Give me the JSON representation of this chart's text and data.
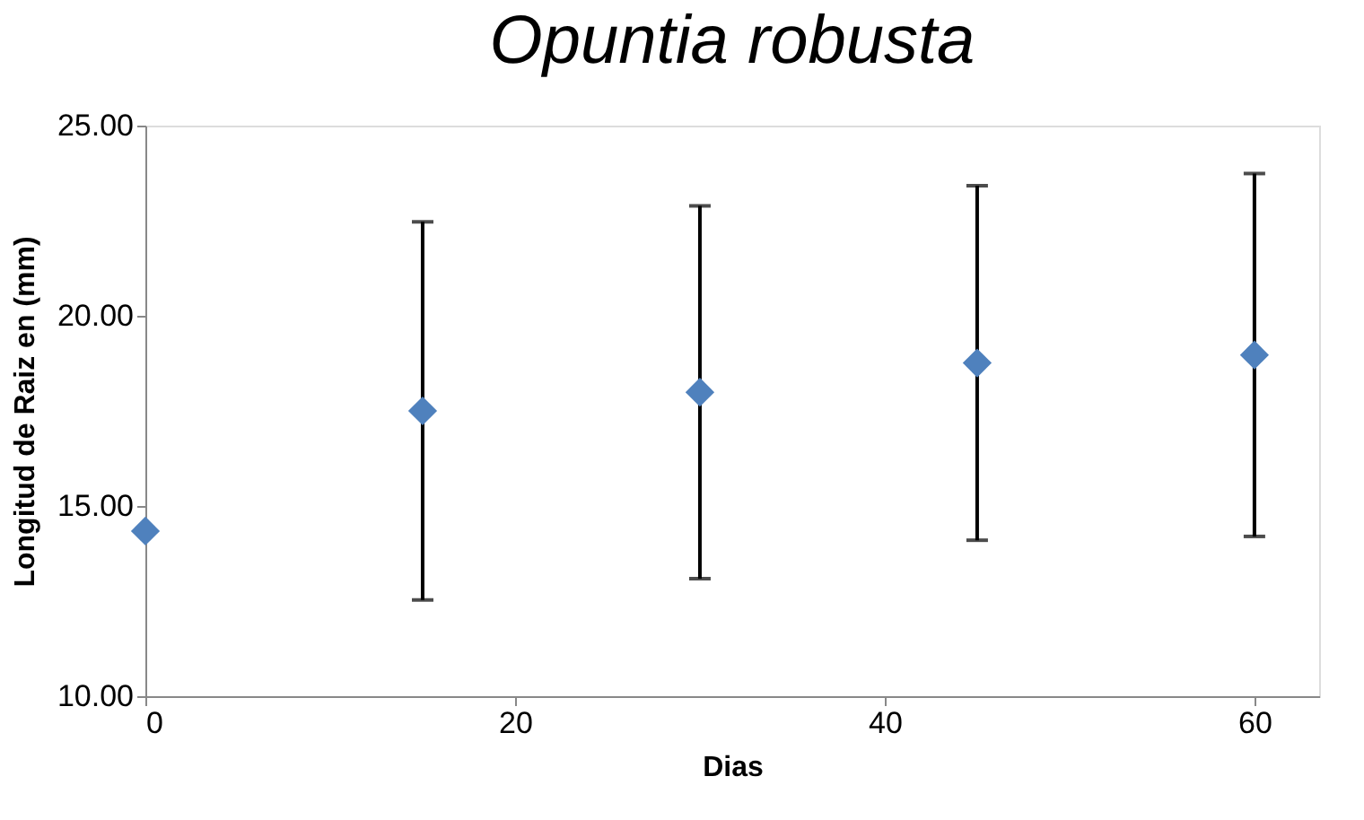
{
  "chart_data": {
    "type": "scatter",
    "title": "Opuntia robusta",
    "xlabel": "Dias",
    "ylabel": "Longitud de Raiz en (mm)",
    "x": [
      0,
      15,
      30,
      45,
      60
    ],
    "series": [
      {
        "color": "#4f81bd",
        "values": [
          14.34,
          17.5,
          17.99,
          18.76,
          18.97
        ],
        "errors": [
          null,
          4.97,
          4.9,
          4.66,
          4.77
        ]
      }
    ],
    "xlim": [
      0,
      63.5
    ],
    "xticks": [
      0,
      20,
      40,
      60
    ],
    "ylim": [
      10,
      25
    ],
    "yticks": [
      {
        "value": 10,
        "label": "10.00"
      },
      {
        "value": 15,
        "label": "15.00"
      },
      {
        "value": 20,
        "label": "20.00"
      },
      {
        "value": 25,
        "label": "25.00"
      }
    ],
    "marker": "diamond",
    "grid": false,
    "legend": false
  }
}
